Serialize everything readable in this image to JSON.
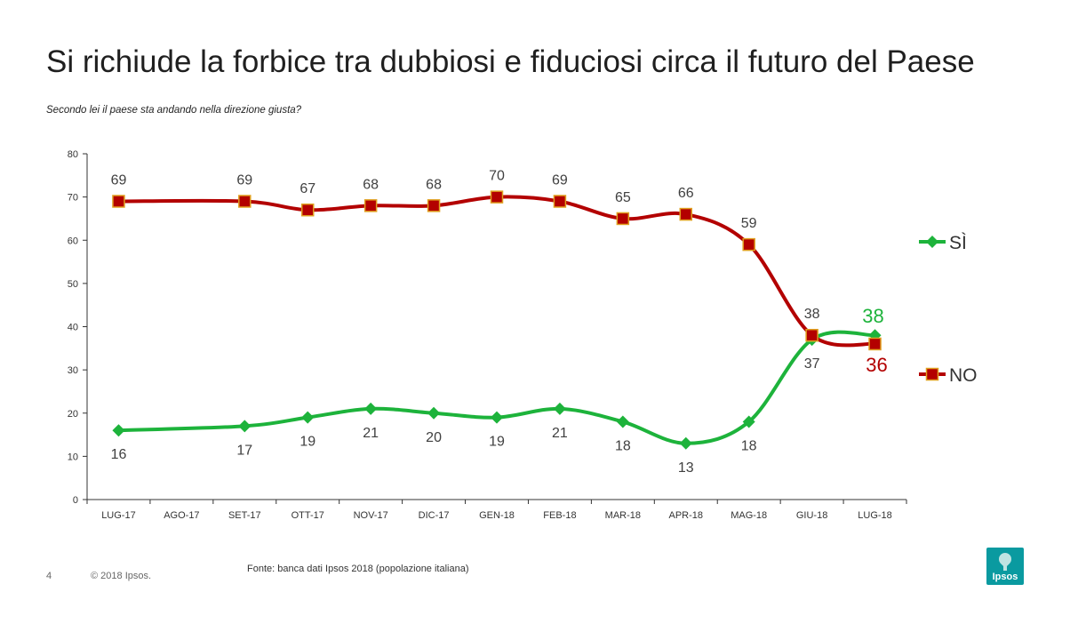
{
  "header": {
    "title": "Si richiude la forbice tra dubbiosi e fiduciosi circa il futuro del Paese",
    "subtitle": "Secondo lei il paese sta andando nella direzione giusta?"
  },
  "footer": {
    "page_number": "4",
    "copyright": "© 2018 Ipsos.",
    "source": "Fonte: banca dati Ipsos 2018 (popolazione italiana)",
    "logo_text": "Ipsos"
  },
  "colors": {
    "si": "#1db33b",
    "no": "#b30000",
    "marker_no_border": "#e0a020",
    "axis": "#333333",
    "label": "#404040"
  },
  "chart_data": {
    "type": "line",
    "title": "Si richiude la forbice tra dubbiosi e fiduciosi circa il futuro del Paese",
    "subtitle": "Secondo lei il paese sta andando nella direzione giusta?",
    "xlabel": "",
    "ylabel": "",
    "ylim": [
      0,
      80
    ],
    "yticks": [
      0,
      10,
      20,
      30,
      40,
      50,
      60,
      70,
      80
    ],
    "grid": false,
    "legend_position": "right",
    "categories": [
      "LUG-17",
      "AGO-17",
      "SET-17",
      "OTT-17",
      "NOV-17",
      "DIC-17",
      "GEN-18",
      "FEB-18",
      "MAR-18",
      "APR-18",
      "MAG-18",
      "GIU-18",
      "LUG-18"
    ],
    "series": [
      {
        "name": "SÌ",
        "marker": "diamond",
        "values": [
          16,
          null,
          17,
          19,
          21,
          20,
          19,
          21,
          18,
          13,
          18,
          37,
          38
        ],
        "labels": [
          "16",
          null,
          "17",
          "19",
          "21",
          "20",
          "19",
          "21",
          "18",
          "13",
          "18",
          "37",
          "38"
        ]
      },
      {
        "name": "NO",
        "marker": "square",
        "values": [
          69,
          null,
          69,
          67,
          68,
          68,
          70,
          69,
          65,
          66,
          59,
          38,
          36
        ],
        "labels": [
          "69",
          null,
          "69",
          "67",
          "68",
          "68",
          "70",
          "69",
          "65",
          "66",
          "59",
          "38",
          "36"
        ]
      }
    ]
  }
}
